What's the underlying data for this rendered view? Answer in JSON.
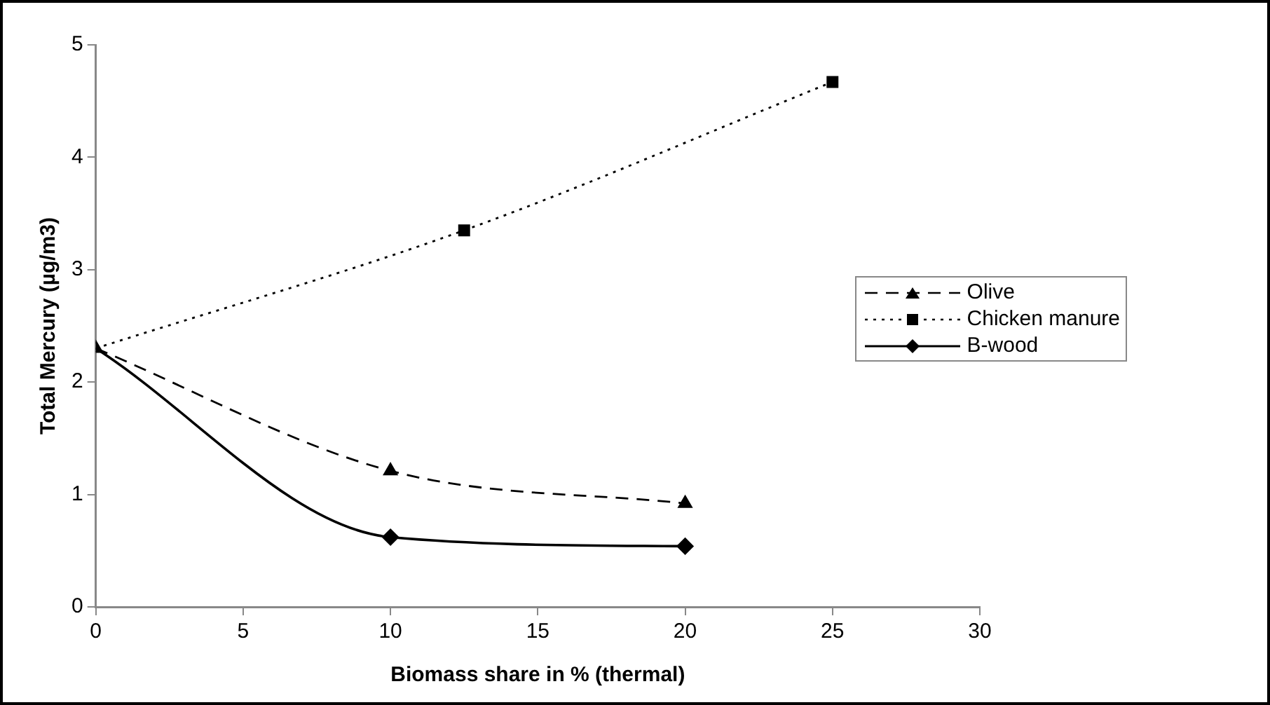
{
  "chart_data": {
    "type": "line",
    "xlabel": "Biomass share in % (thermal)",
    "ylabel": "Total Mercury (µg/m3)",
    "xlim": [
      0,
      30
    ],
    "xticks": [
      0,
      5,
      10,
      15,
      20,
      25,
      30
    ],
    "ylim": [
      0,
      5
    ],
    "yticks": [
      0,
      1,
      2,
      3,
      4,
      5
    ],
    "grid": false,
    "legend": "right",
    "series": [
      {
        "name": "Olive",
        "color": "#000000",
        "x": [
          0,
          10,
          20
        ],
        "values": [
          2.3,
          1.21,
          0.92
        ],
        "marker": "triangle",
        "line_style": "dashed"
      },
      {
        "name": "Chicken manure",
        "color": "#000000",
        "x": [
          0,
          12.5,
          25
        ],
        "values": [
          2.3,
          3.35,
          4.67
        ],
        "marker": "square",
        "line_style": "dotted"
      },
      {
        "name": "B-wood",
        "color": "#000000",
        "x": [
          0,
          10,
          20
        ],
        "values": [
          2.3,
          0.62,
          0.54
        ],
        "marker": "diamond",
        "line_style": "solid"
      }
    ]
  }
}
